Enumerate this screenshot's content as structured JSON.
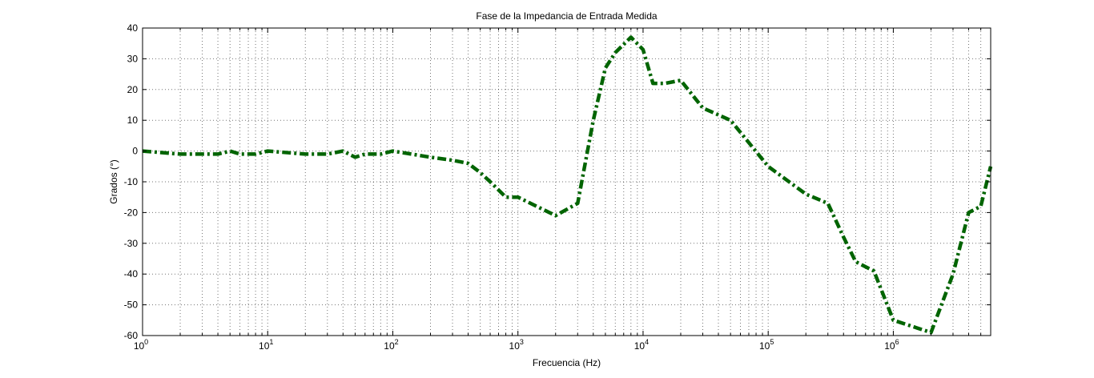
{
  "chart_data": {
    "type": "line",
    "title": "Fase de la Impedancia de Entrada Medida",
    "xlabel": "Frecuencia (Hz)",
    "ylabel": "Grados (°)",
    "xscale": "log",
    "xlim": [
      1,
      6000000
    ],
    "ylim": [
      -60,
      40
    ],
    "yticks": [
      "40",
      "30",
      "20",
      "10",
      "0",
      "-10",
      "-20",
      "-30",
      "-40",
      "-50",
      "-60"
    ],
    "xticks": [
      {
        "base": "10",
        "exp": "0"
      },
      {
        "base": "10",
        "exp": "1"
      },
      {
        "base": "10",
        "exp": "2"
      },
      {
        "base": "10",
        "exp": "3"
      },
      {
        "base": "10",
        "exp": "4"
      },
      {
        "base": "10",
        "exp": "5"
      },
      {
        "base": "10",
        "exp": "6"
      }
    ],
    "grid": true,
    "line_color": "#006400",
    "line_style": "dash-dot",
    "series": [
      {
        "x": [
          1,
          2,
          3,
          4,
          5,
          6,
          7,
          8,
          10,
          20,
          30,
          40,
          50,
          60,
          80,
          100,
          200,
          300,
          400,
          500,
          600,
          800,
          1000,
          2000,
          3000,
          4000,
          5000,
          6000,
          8000,
          10000,
          12000,
          15000,
          20000,
          30000,
          50000,
          100000,
          200000,
          300000,
          400000,
          500000,
          700000,
          1000000,
          2000000,
          3000000,
          4000000,
          5000000,
          6000000
        ],
        "y": [
          0,
          -1,
          -1,
          -1,
          0,
          -1,
          -1,
          -1,
          0,
          -1,
          -1,
          0,
          -2,
          -1,
          -1,
          0,
          -2,
          -3,
          -4,
          -7,
          -10,
          -15,
          -15,
          -21,
          -17,
          10,
          27,
          32,
          37,
          33,
          22,
          22,
          23,
          14,
          10,
          -5,
          -14,
          -17,
          -28,
          -36,
          -39,
          -55,
          -59,
          -40,
          -20,
          -18,
          -5
        ]
      }
    ]
  }
}
